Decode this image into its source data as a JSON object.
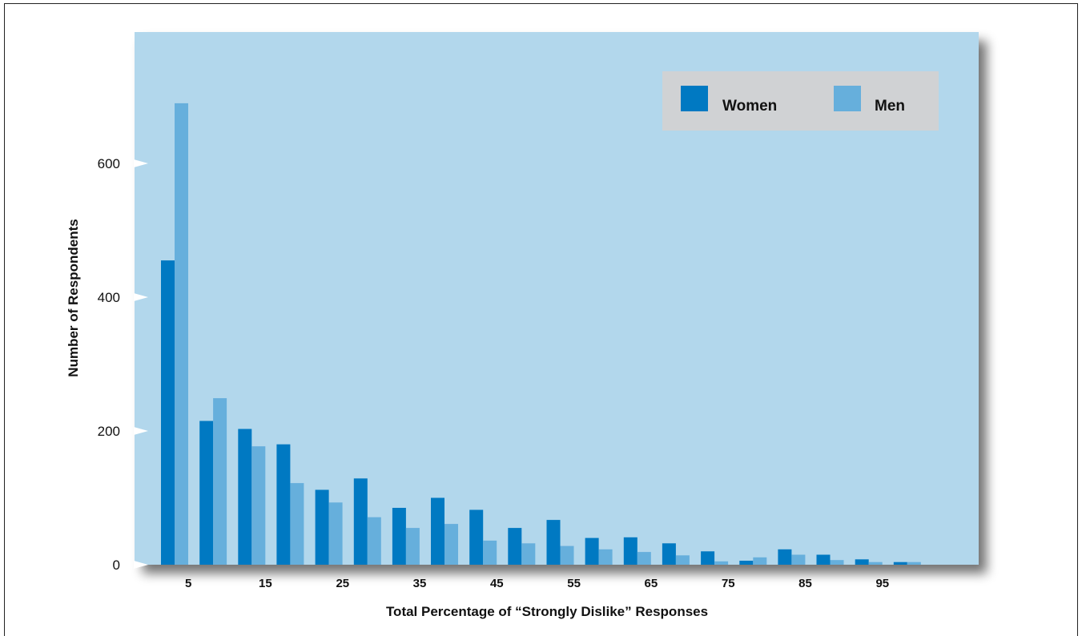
{
  "chart_data": {
    "type": "bar",
    "title": "",
    "xlabel": "Total Percentage of “Strongly Dislike” Responses",
    "ylabel": "Number of Respondents",
    "ylim": [
      0,
      800
    ],
    "yticks": [
      0,
      200,
      400,
      600
    ],
    "x_tick_labels": [
      "5",
      "15",
      "25",
      "35",
      "45",
      "55",
      "65",
      "75",
      "85",
      "95"
    ],
    "bins": 20,
    "grid": false,
    "legend_position": "top-right",
    "colors": {
      "plot_bg": "#b2d7ec",
      "legend_bg": "#d0d2d4",
      "women": "#0079c2",
      "men": "#66afdc"
    },
    "series": [
      {
        "name": "Women",
        "values": [
          455,
          215,
          203,
          180,
          112,
          129,
          85,
          100,
          82,
          55,
          67,
          40,
          41,
          32,
          20,
          6,
          23,
          15,
          8,
          4
        ]
      },
      {
        "name": "Men",
        "values": [
          690,
          249,
          177,
          122,
          93,
          71,
          55,
          61,
          36,
          32,
          28,
          23,
          19,
          14,
          5,
          11,
          15,
          7,
          4,
          4
        ]
      }
    ]
  }
}
